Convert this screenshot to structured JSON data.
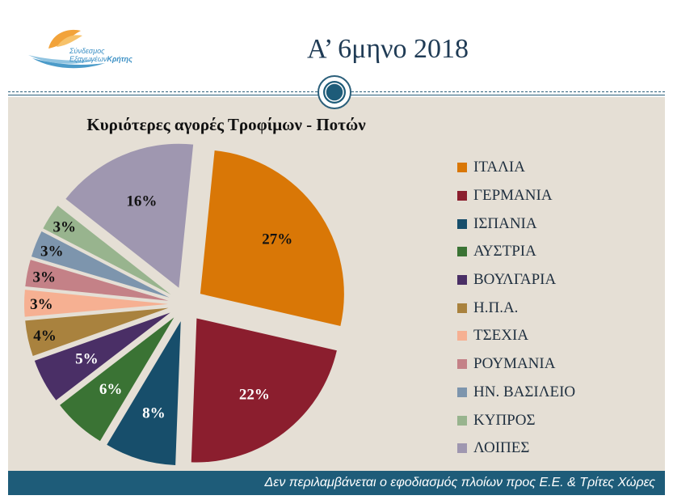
{
  "slide_title": "Α’ 6μηνο 2018",
  "logo": {
    "line1": "Σύνδεσμος",
    "line2a": "Εξαγωγέων",
    "line2b": "Κρήτης"
  },
  "footer_note": "Δεν περιλαμβάνεται ο εφοδιασμός πλοίων προς Ε.Ε. & Τρίτες Χώρες",
  "chart_data": {
    "type": "pie",
    "title": "Κυριότερες αγορές Τροφίμων - Ποτών",
    "categories": [
      "ΙΤΑΛΙΑ",
      "ΓΕΡΜΑΝΙΑ",
      "ΙΣΠΑΝΙΑ",
      "ΑΥΣΤΡΙΑ",
      "ΒΟΥΛΓΑΡΙΑ",
      "Η.Π.Α.",
      "ΤΣΕΧΙΑ",
      "ΡΟΥΜΑΝΙΑ",
      "ΗΝ. ΒΑΣΙΛΕΙΟ",
      "ΚΥΠΡΟΣ",
      "ΛΟΙΠΕΣ"
    ],
    "values": [
      27,
      22,
      8,
      6,
      5,
      4,
      3,
      3,
      3,
      3,
      16
    ],
    "data_labels": [
      "27%",
      "22%",
      "8%",
      "6%",
      "5%",
      "4%",
      "3%",
      "3%",
      "3%",
      "3%",
      "16%"
    ],
    "colors": [
      "#d97706",
      "#8b1e2e",
      "#174e6b",
      "#3a7334",
      "#4a2f66",
      "#a9823e",
      "#f6b092",
      "#c48187",
      "#7d95ad",
      "#98b48e",
      "#9f97b0"
    ],
    "legend_position": "right",
    "exploded": true
  }
}
